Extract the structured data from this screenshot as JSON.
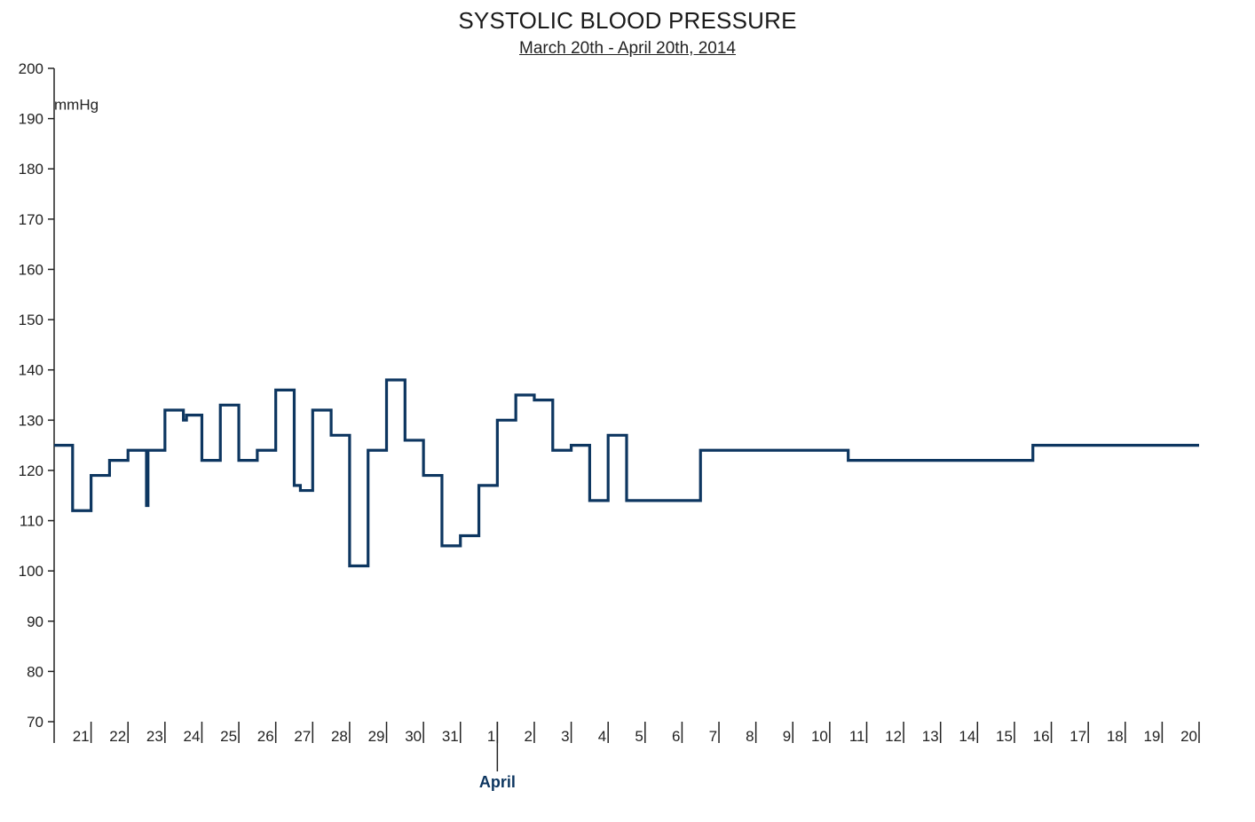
{
  "chart_data": {
    "type": "line",
    "title": "SYSTOLIC BLOOD PRESSURE",
    "subtitle": "March 20th - April 20th, 2014",
    "ylabel": "mmHg",
    "ylim": [
      70,
      200
    ],
    "yticks": [
      70,
      80,
      90,
      100,
      110,
      120,
      130,
      140,
      150,
      160,
      170,
      180,
      190,
      200
    ],
    "xlim": [
      "2014-03-20",
      "2014-04-20"
    ],
    "x_tick_labels": [
      "21",
      "22",
      "23",
      "24",
      "25",
      "26",
      "27",
      "28",
      "29",
      "30",
      "31",
      "1",
      "2",
      "3",
      "4",
      "5",
      "6",
      "7",
      "8",
      "9",
      "10",
      "11",
      "12",
      "13",
      "14",
      "15",
      "16",
      "17",
      "18",
      "19",
      "20"
    ],
    "month_marker": {
      "label": "April",
      "date": "2014-04-01"
    },
    "line_color": "#0d3660",
    "grid": false,
    "step": "after",
    "series": [
      {
        "x": [
          "2014-03-20T00:00",
          "2014-03-20T12:00",
          "2014-03-21T00:00",
          "2014-03-21T12:00",
          "2014-03-22T00:00",
          "2014-03-22T12:00",
          "2014-03-22T13:00",
          "2014-03-23T00:00",
          "2014-03-23T12:00",
          "2014-03-23T14:00",
          "2014-03-24T00:00",
          "2014-03-24T12:00",
          "2014-03-25T00:00",
          "2014-03-25T12:00",
          "2014-03-26T00:00",
          "2014-03-26T12:00",
          "2014-03-26T16:00",
          "2014-03-27T00:00",
          "2014-03-27T12:00",
          "2014-03-28T00:00",
          "2014-03-28T12:00",
          "2014-03-29T00:00",
          "2014-03-29T12:00",
          "2014-03-30T00:00",
          "2014-03-30T12:00",
          "2014-03-31T00:00",
          "2014-03-31T12:00",
          "2014-04-01T00:00",
          "2014-04-01T12:00",
          "2014-04-02T00:00",
          "2014-04-02T12:00",
          "2014-04-03T00:00",
          "2014-04-03T12:00",
          "2014-04-04T00:00",
          "2014-04-04T12:00",
          "2014-04-05T00:00",
          "2014-04-05T12:00",
          "2014-04-06T00:00",
          "2014-04-06T12:00",
          "2014-04-07T00:00",
          "2014-04-08T00:00",
          "2014-04-09T00:00",
          "2014-04-10T12:00",
          "2014-04-15T12:00",
          "2014-04-20T00:00"
        ],
        "values": [
          125,
          112,
          119,
          122,
          124,
          113,
          124,
          132,
          130,
          131,
          122,
          133,
          122,
          124,
          136,
          117,
          116,
          132,
          127,
          101,
          124,
          138,
          126,
          119,
          105,
          107,
          117,
          130,
          135,
          134,
          124,
          125,
          114,
          127,
          114,
          114,
          114,
          114,
          124,
          124,
          124,
          124,
          122,
          125,
          125
        ]
      }
    ]
  }
}
